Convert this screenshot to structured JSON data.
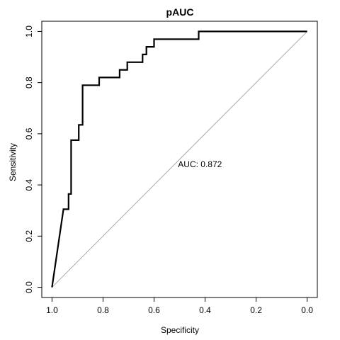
{
  "chart_data": {
    "type": "line",
    "title": "pAUC",
    "xlabel": "Specificity",
    "ylabel": "Sensitivity",
    "x_reversed": true,
    "xlim": [
      1.04,
      -0.04
    ],
    "ylim": [
      -0.04,
      1.04
    ],
    "x_ticks": [
      1.0,
      0.8,
      0.6,
      0.4,
      0.2,
      0.0
    ],
    "x_tick_labels": [
      "1.0",
      "0.8",
      "0.6",
      "0.4",
      "0.2",
      "0.0"
    ],
    "y_ticks": [
      0.0,
      0.2,
      0.4,
      0.6,
      0.8,
      1.0
    ],
    "y_tick_labels": [
      "0.0",
      "0.2",
      "0.4",
      "0.6",
      "0.8",
      "1.0"
    ],
    "grid": false,
    "annotation": {
      "text": "AUC: 0.872",
      "x": 0.42,
      "y": 0.48
    },
    "reference_line": {
      "from": [
        1.0,
        0.0
      ],
      "to": [
        0.0,
        1.0
      ],
      "color": "#aaaaaa"
    },
    "series": [
      {
        "color": "#000000",
        "points": [
          [
            1.0,
            0.0
          ],
          [
            0.955,
            0.305
          ],
          [
            0.935,
            0.305
          ],
          [
            0.935,
            0.365
          ],
          [
            0.925,
            0.365
          ],
          [
            0.925,
            0.575
          ],
          [
            0.895,
            0.575
          ],
          [
            0.895,
            0.635
          ],
          [
            0.88,
            0.635
          ],
          [
            0.88,
            0.79
          ],
          [
            0.815,
            0.79
          ],
          [
            0.815,
            0.82
          ],
          [
            0.735,
            0.82
          ],
          [
            0.735,
            0.85
          ],
          [
            0.705,
            0.85
          ],
          [
            0.705,
            0.88
          ],
          [
            0.645,
            0.88
          ],
          [
            0.645,
            0.91
          ],
          [
            0.63,
            0.91
          ],
          [
            0.63,
            0.94
          ],
          [
            0.6,
            0.94
          ],
          [
            0.6,
            0.97
          ],
          [
            0.425,
            0.97
          ],
          [
            0.425,
            1.0
          ],
          [
            0.0,
            1.0
          ]
        ]
      }
    ]
  }
}
